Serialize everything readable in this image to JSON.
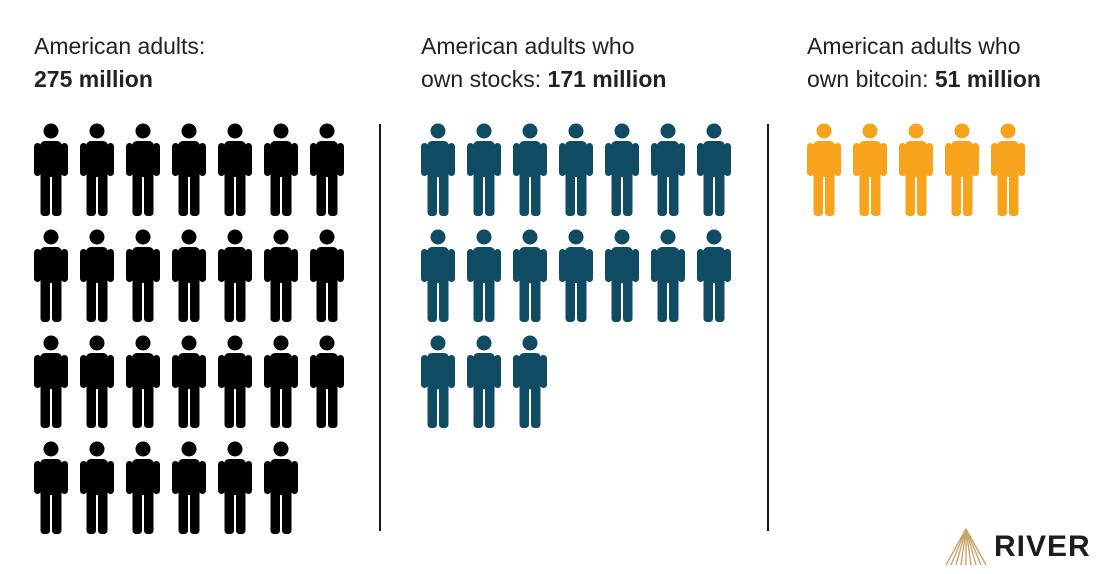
{
  "chart_data": {
    "type": "pictograph",
    "groups": [
      {
        "label_line1": "American adults:",
        "label_prefix": "",
        "value_text": "275 million",
        "value": 275,
        "unit": "million",
        "icon_count": 27,
        "color": "#000000"
      },
      {
        "label_line1": "American adults who",
        "label_prefix": "own stocks: ",
        "value_text": "171 million",
        "value": 171,
        "unit": "million",
        "icon_count": 17,
        "color": "#0f4b63"
      },
      {
        "label_line1": "American adults who",
        "label_prefix": "own bitcoin: ",
        "value_text": "51 million",
        "value": 51,
        "unit": "million",
        "icon_count": 5,
        "color": "#f7a31b"
      }
    ]
  },
  "brand": {
    "name": "RIVER",
    "icon": "river-logo-icon",
    "color": "#c9a46a"
  }
}
